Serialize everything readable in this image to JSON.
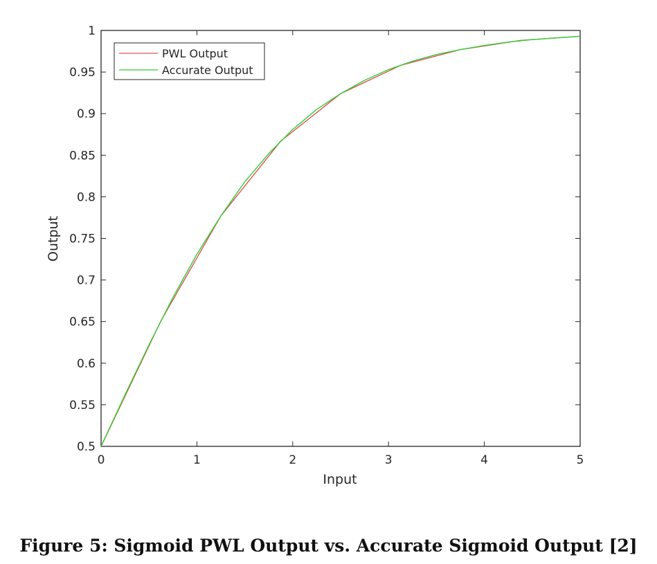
{
  "caption": "Figure 5: Sigmoid PWL Output vs. Accurate Sigmoid Output [2]",
  "chart_data": {
    "type": "line",
    "xlabel": "Input",
    "ylabel": "Output",
    "xlim": [
      0,
      5
    ],
    "ylim": [
      0.5,
      1
    ],
    "xticks": [
      0,
      1,
      2,
      3,
      4,
      5
    ],
    "xtick_labels": [
      "0",
      "1",
      "2",
      "3",
      "4",
      "5"
    ],
    "yticks": [
      0.5,
      0.55,
      0.6,
      0.65,
      0.7,
      0.75,
      0.8,
      0.85,
      0.9,
      0.95,
      1
    ],
    "ytick_labels": [
      "0.5",
      "0.55",
      "0.6",
      "0.65",
      "0.7",
      "0.75",
      "0.8",
      "0.85",
      "0.9",
      "0.95",
      "1"
    ],
    "grid": false,
    "legend_position": "top-left",
    "series": [
      {
        "name": "PWL Output",
        "color": "#d9534f",
        "x": [
          0,
          0.625,
          1.25,
          1.875,
          2.5,
          3.125,
          3.75,
          4.375,
          5
        ],
        "y": [
          0.5,
          0.651,
          0.777,
          0.867,
          0.924,
          0.958,
          0.977,
          0.988,
          0.993
        ]
      },
      {
        "name": "Accurate Output",
        "color": "#33cc33",
        "x": [
          0,
          0.25,
          0.5,
          0.75,
          1,
          1.25,
          1.5,
          1.75,
          2,
          2.25,
          2.5,
          2.75,
          3,
          3.25,
          3.5,
          3.75,
          4,
          4.25,
          4.5,
          4.75,
          5
        ],
        "y": [
          0.5,
          0.562,
          0.622,
          0.679,
          0.731,
          0.777,
          0.818,
          0.852,
          0.881,
          0.905,
          0.924,
          0.94,
          0.953,
          0.963,
          0.971,
          0.977,
          0.982,
          0.986,
          0.989,
          0.991,
          0.993
        ]
      }
    ]
  }
}
